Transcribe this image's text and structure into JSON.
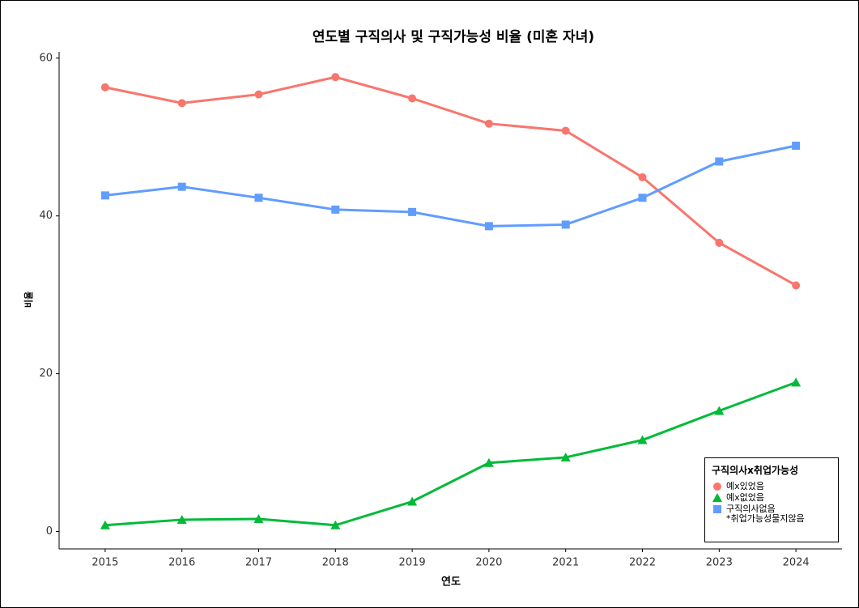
{
  "chart_data": {
    "type": "line",
    "title": "연도별 구직의사 및 구직가능성 비율 (미혼 자녀)",
    "x_label": "연도",
    "y_label": "비율",
    "x": [
      2015,
      2016,
      2017,
      2018,
      2019,
      2020,
      2021,
      2022,
      2023,
      2024
    ],
    "xlim": [
      2014.4,
      2024.6
    ],
    "xticks": [
      2015,
      2016,
      2017,
      2018,
      2019,
      2020,
      2021,
      2022,
      2023,
      2024
    ],
    "ylim": [
      -2.2,
      60.8
    ],
    "yticks": [
      0,
      20,
      40,
      60
    ],
    "grid": false,
    "legend_position": "bottom-right",
    "legend_title": "구직의사x취업가능성",
    "series": [
      {
        "name": "예x있었음",
        "color": "#F8766D",
        "marker": "circle",
        "values": [
          56.3,
          54.3,
          55.4,
          57.6,
          54.9,
          51.7,
          50.8,
          44.9,
          36.6,
          31.2
        ]
      },
      {
        "name": "예x없었음",
        "color": "#00BA38",
        "marker": "triangle",
        "values": [
          0.8,
          1.5,
          1.6,
          0.8,
          3.8,
          8.7,
          9.4,
          11.6,
          15.3,
          18.9
        ]
      },
      {
        "name": "구직의사없음\n*취업가능성물지않음",
        "color": "#619CFF",
        "marker": "square",
        "values": [
          42.6,
          43.7,
          42.3,
          40.8,
          40.5,
          38.7,
          38.9,
          42.3,
          46.9,
          48.9
        ]
      }
    ]
  }
}
